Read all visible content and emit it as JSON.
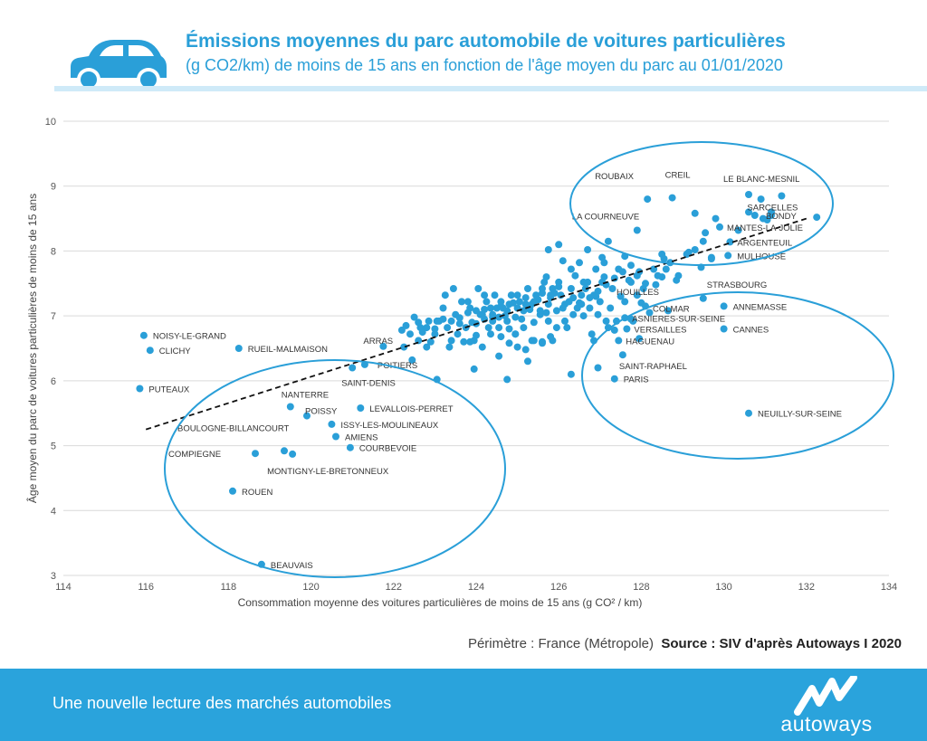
{
  "header": {
    "title": "Émissions moyennes du parc automobile de voitures particulières",
    "subtitle": "(g CO2/km) de moins de 15 ans en fonction de l'âge moyen du parc au 01/01/2020",
    "car_icon": "car-icon"
  },
  "source": {
    "perimeter": "Périmètre : France (Métropole)",
    "source_label": "Source : SIV d'après Autoways  I  2020"
  },
  "footer": {
    "tagline": "Une nouvelle lecture des marchés automobiles",
    "brand": "autoways"
  },
  "colors": {
    "accent": "#2a9fd8",
    "point": "#2a9fd8",
    "footer_bg": "#2aa3dc",
    "trend": "#111111"
  },
  "chart_data": {
    "type": "scatter",
    "xlabel": "Consommation moyenne des voitures particulières de moins de 15 ans (g CO² / km)",
    "ylabel": "Âge moyen du parc de voitures particulières de moins de 15 ans",
    "xlim": [
      114,
      134
    ],
    "ylim": [
      3,
      10
    ],
    "xticks": [
      114,
      116,
      118,
      120,
      122,
      124,
      126,
      128,
      130,
      132,
      134
    ],
    "yticks": [
      3,
      4,
      5,
      6,
      7,
      8,
      9,
      10
    ],
    "grid": "horizontal",
    "trendline": {
      "x": [
        116,
        132
      ],
      "y": [
        5.25,
        8.5
      ]
    },
    "labeled_points": [
      {
        "label": "NOISY-LE-GRAND",
        "x": 115.95,
        "y": 6.7
      },
      {
        "label": "CLICHY",
        "x": 116.1,
        "y": 6.47
      },
      {
        "label": "PUTEAUX",
        "x": 115.85,
        "y": 5.88
      },
      {
        "label": "RUEIL-MALMAISON",
        "x": 118.25,
        "y": 6.5
      },
      {
        "label": "ARRAS",
        "x": 121.75,
        "y": 6.53
      },
      {
        "label": "POITIERS",
        "x": 121.3,
        "y": 6.25
      },
      {
        "label": "SAINT-DENIS",
        "x": 121.0,
        "y": 6.2
      },
      {
        "label": "NANTERRE",
        "x": 119.5,
        "y": 5.6
      },
      {
        "label": "POISSY",
        "x": 119.9,
        "y": 5.46
      },
      {
        "label": "LEVALLOIS-PERRET",
        "x": 121.2,
        "y": 5.58
      },
      {
        "label": "ISSY-LES-MOULINEAUX",
        "x": 120.5,
        "y": 5.33
      },
      {
        "label": "BOULOGNE-BILLANCOURT",
        "x": 119.35,
        "y": 4.92
      },
      {
        "label": "AMIENS",
        "x": 120.6,
        "y": 5.14
      },
      {
        "label": "COURBEVOIE",
        "x": 120.95,
        "y": 4.97
      },
      {
        "label": "COMPIEGNE",
        "x": 118.65,
        "y": 4.88
      },
      {
        "label": "MONTIGNY-LE-BRETONNEUX",
        "x": 119.55,
        "y": 4.87
      },
      {
        "label": "ROUEN",
        "x": 118.1,
        "y": 4.3
      },
      {
        "label": "BEAUVAIS",
        "x": 118.8,
        "y": 3.17
      },
      {
        "label": "ROUBAIX",
        "x": 128.15,
        "y": 8.8
      },
      {
        "label": "CREIL",
        "x": 128.75,
        "y": 8.82
      },
      {
        "label": "LE BLANC-MESNIL",
        "x": 130.6,
        "y": 8.87
      },
      {
        "label": "SARCELLES",
        "x": 131.4,
        "y": 8.85
      },
      {
        "label": "BONDY",
        "x": 131.15,
        "y": 8.55
      },
      {
        "label": "LA COURNEUVE",
        "x": 127.9,
        "y": 8.32
      },
      {
        "label": "MANTES-LA-JOLIE",
        "x": 129.9,
        "y": 8.37
      },
      {
        "label": "ARGENTEUIL",
        "x": 130.15,
        "y": 8.14
      },
      {
        "label": "MULHOUSE",
        "x": 130.1,
        "y": 7.93
      },
      {
        "label": "STRASBOURG",
        "x": 129.5,
        "y": 7.27
      },
      {
        "label": "HOUILLES",
        "x": 127.75,
        "y": 7.52
      },
      {
        "label": "ANNEMASSE",
        "x": 130.0,
        "y": 7.15
      },
      {
        "label": "COLMAR",
        "x": 128.1,
        "y": 7.15
      },
      {
        "label": "ASNIERES-SUR-SEINE",
        "x": 127.6,
        "y": 6.97
      },
      {
        "label": "VERSAILLES",
        "x": 127.65,
        "y": 6.8
      },
      {
        "label": "CANNES",
        "x": 130.0,
        "y": 6.8
      },
      {
        "label": "HAGUENAU",
        "x": 127.45,
        "y": 6.62
      },
      {
        "label": "SAINT-RAPHAEL",
        "x": 127.55,
        "y": 6.4
      },
      {
        "label": "PARIS",
        "x": 127.35,
        "y": 6.03
      },
      {
        "label": "NEUILLY-SUR-SEINE",
        "x": 130.6,
        "y": 5.5
      }
    ],
    "points": [
      [
        122.3,
        6.85
      ],
      [
        122.5,
        6.98
      ],
      [
        122.7,
        6.75
      ],
      [
        122.9,
        6.6
      ],
      [
        123.1,
        6.92
      ],
      [
        123.3,
        6.82
      ],
      [
        123.5,
        7.02
      ],
      [
        123.7,
        6.6
      ],
      [
        123.9,
        6.9
      ],
      [
        124.1,
        7.02
      ],
      [
        124.3,
        6.82
      ],
      [
        124.5,
        7.12
      ],
      [
        124.7,
        7.0
      ],
      [
        124.9,
        7.2
      ],
      [
        125.1,
        6.95
      ],
      [
        125.3,
        7.1
      ],
      [
        125.5,
        7.25
      ],
      [
        125.7,
        7.05
      ],
      [
        125.9,
        7.35
      ],
      [
        126.1,
        7.12
      ],
      [
        126.3,
        7.42
      ],
      [
        126.5,
        7.2
      ],
      [
        126.7,
        7.52
      ],
      [
        126.9,
        7.3
      ],
      [
        127.1,
        7.6
      ],
      [
        127.3,
        7.42
      ],
      [
        127.5,
        7.3
      ],
      [
        127.7,
        7.55
      ],
      [
        127.9,
        7.62
      ],
      [
        128.1,
        7.5
      ],
      [
        128.3,
        7.72
      ],
      [
        128.5,
        7.6
      ],
      [
        128.7,
        7.82
      ],
      [
        128.9,
        7.62
      ],
      [
        129.1,
        7.95
      ],
      [
        129.3,
        8.02
      ],
      [
        129.5,
        8.15
      ],
      [
        129.7,
        7.88
      ],
      [
        122.6,
        6.62
      ],
      [
        122.8,
        6.52
      ],
      [
        123.0,
        6.72
      ],
      [
        123.2,
        7.12
      ],
      [
        123.4,
        6.62
      ],
      [
        123.6,
        6.97
      ],
      [
        123.8,
        7.22
      ],
      [
        124.0,
        6.7
      ],
      [
        124.2,
        7.32
      ],
      [
        124.4,
        6.92
      ],
      [
        124.6,
        7.22
      ],
      [
        124.8,
        6.8
      ],
      [
        125.0,
        7.32
      ],
      [
        125.2,
        7.18
      ],
      [
        125.4,
        6.9
      ],
      [
        125.6,
        7.42
      ],
      [
        125.8,
        7.32
      ],
      [
        126.0,
        7.52
      ],
      [
        126.2,
        6.82
      ],
      [
        126.4,
        7.62
      ],
      [
        126.6,
        7.0
      ],
      [
        126.8,
        6.72
      ],
      [
        127.0,
        7.22
      ],
      [
        127.2,
        6.82
      ],
      [
        127.4,
        6.92
      ],
      [
        127.6,
        7.22
      ],
      [
        127.8,
        6.92
      ],
      [
        128.0,
        7.2
      ],
      [
        128.2,
        7.05
      ],
      [
        128.4,
        7.62
      ],
      [
        128.6,
        7.72
      ],
      [
        123.25,
        7.32
      ],
      [
        123.45,
        7.42
      ],
      [
        123.65,
        7.22
      ],
      [
        123.85,
        7.12
      ],
      [
        124.05,
        7.42
      ],
      [
        124.25,
        7.22
      ],
      [
        124.45,
        7.32
      ],
      [
        124.65,
        7.12
      ],
      [
        124.85,
        7.32
      ],
      [
        125.05,
        7.22
      ],
      [
        125.25,
        7.42
      ],
      [
        125.45,
        7.32
      ],
      [
        125.65,
        7.52
      ],
      [
        125.85,
        7.42
      ],
      [
        126.05,
        7.32
      ],
      [
        126.25,
        7.22
      ],
      [
        126.45,
        7.12
      ],
      [
        126.65,
        7.42
      ],
      [
        126.85,
        7.32
      ],
      [
        127.05,
        7.52
      ],
      [
        127.25,
        7.12
      ],
      [
        123.35,
        6.52
      ],
      [
        123.55,
        6.72
      ],
      [
        123.75,
        6.82
      ],
      [
        123.95,
        6.62
      ],
      [
        124.15,
        6.52
      ],
      [
        124.35,
        6.72
      ],
      [
        124.55,
        6.82
      ],
      [
        124.75,
        6.92
      ],
      [
        124.95,
        6.72
      ],
      [
        125.15,
        6.82
      ],
      [
        125.35,
        6.62
      ],
      [
        125.55,
        7.02
      ],
      [
        125.75,
        6.92
      ],
      [
        125.95,
        6.82
      ],
      [
        126.15,
        6.92
      ],
      [
        126.35,
        7.02
      ],
      [
        126.55,
        7.32
      ],
      [
        126.75,
        7.12
      ],
      [
        126.95,
        7.02
      ],
      [
        127.15,
        6.92
      ],
      [
        122.25,
        6.52
      ],
      [
        122.45,
        6.32
      ],
      [
        122.65,
        6.82
      ],
      [
        122.85,
        6.92
      ],
      [
        123.05,
        6.92
      ],
      [
        123.95,
        6.18
      ],
      [
        124.55,
        6.38
      ],
      [
        125.85,
        6.62
      ],
      [
        126.85,
        6.62
      ],
      [
        127.35,
        6.78
      ],
      [
        124.15,
        7.02
      ],
      [
        124.35,
        7.12
      ],
      [
        124.55,
        6.98
      ],
      [
        124.75,
        7.08
      ],
      [
        124.95,
        6.98
      ],
      [
        125.15,
        7.08
      ],
      [
        125.35,
        7.18
      ],
      [
        125.55,
        7.08
      ],
      [
        125.75,
        7.18
      ],
      [
        125.95,
        7.08
      ],
      [
        126.15,
        7.18
      ],
      [
        126.35,
        7.28
      ],
      [
        126.55,
        7.18
      ],
      [
        126.75,
        7.28
      ],
      [
        126.95,
        7.38
      ],
      [
        127.15,
        7.48
      ],
      [
        127.35,
        7.58
      ],
      [
        127.55,
        7.68
      ],
      [
        127.75,
        7.78
      ],
      [
        127.95,
        7.68
      ],
      [
        122.2,
        6.78
      ],
      [
        122.4,
        6.72
      ],
      [
        122.6,
        6.9
      ],
      [
        122.8,
        6.82
      ],
      [
        123.0,
        6.8
      ],
      [
        123.2,
        6.95
      ],
      [
        123.4,
        6.92
      ],
      [
        123.6,
        6.88
      ],
      [
        123.8,
        7.05
      ],
      [
        124.0,
        7.08
      ],
      [
        124.2,
        7.1
      ],
      [
        124.4,
        7.02
      ],
      [
        124.6,
        7.15
      ],
      [
        124.8,
        7.18
      ],
      [
        125.0,
        7.12
      ],
      [
        125.2,
        7.28
      ],
      [
        125.4,
        7.22
      ],
      [
        125.6,
        7.35
      ],
      [
        125.8,
        7.28
      ],
      [
        126.0,
        7.45
      ],
      [
        124.6,
        6.68
      ],
      [
        124.8,
        6.58
      ],
      [
        125.0,
        6.52
      ],
      [
        125.2,
        6.48
      ],
      [
        125.4,
        6.62
      ],
      [
        125.6,
        6.58
      ],
      [
        125.8,
        6.68
      ],
      [
        124.0,
        6.88
      ],
      [
        124.2,
        6.95
      ],
      [
        124.4,
        6.98
      ],
      [
        126.0,
        8.1
      ],
      [
        125.75,
        8.02
      ],
      [
        126.7,
        8.02
      ],
      [
        127.2,
        8.15
      ],
      [
        126.1,
        7.85
      ],
      [
        127.05,
        7.9
      ],
      [
        126.3,
        7.72
      ],
      [
        126.5,
        7.82
      ],
      [
        126.9,
        7.72
      ],
      [
        127.6,
        7.92
      ],
      [
        125.7,
        7.6
      ],
      [
        126.6,
        7.52
      ],
      [
        127.9,
        7.32
      ],
      [
        128.35,
        7.48
      ],
      [
        129.45,
        7.75
      ],
      [
        128.55,
        7.88
      ],
      [
        128.85,
        7.55
      ],
      [
        128.05,
        7.42
      ],
      [
        127.1,
        7.82
      ],
      [
        127.45,
        7.72
      ],
      [
        124.75,
        6.02
      ],
      [
        125.6,
        6.6
      ],
      [
        124.95,
        6.72
      ],
      [
        123.85,
        6.6
      ],
      [
        123.05,
        6.02
      ],
      [
        125.25,
        6.3
      ],
      [
        126.3,
        6.1
      ],
      [
        127.75,
        6.95
      ],
      [
        126.95,
        6.2
      ],
      [
        127.95,
        6.65
      ],
      [
        130.95,
        8.5
      ],
      [
        131.15,
        8.6
      ],
      [
        131.05,
        8.48
      ],
      [
        130.75,
        8.55
      ],
      [
        130.6,
        8.6
      ],
      [
        129.8,
        8.5
      ],
      [
        129.3,
        8.58
      ],
      [
        129.55,
        8.28
      ],
      [
        130.35,
        8.32
      ],
      [
        129.15,
        7.98
      ],
      [
        130.9,
        8.8
      ],
      [
        132.25,
        8.52
      ],
      [
        128.5,
        7.95
      ],
      [
        129.7,
        7.9
      ],
      [
        128.65,
        7.08
      ]
    ]
  }
}
